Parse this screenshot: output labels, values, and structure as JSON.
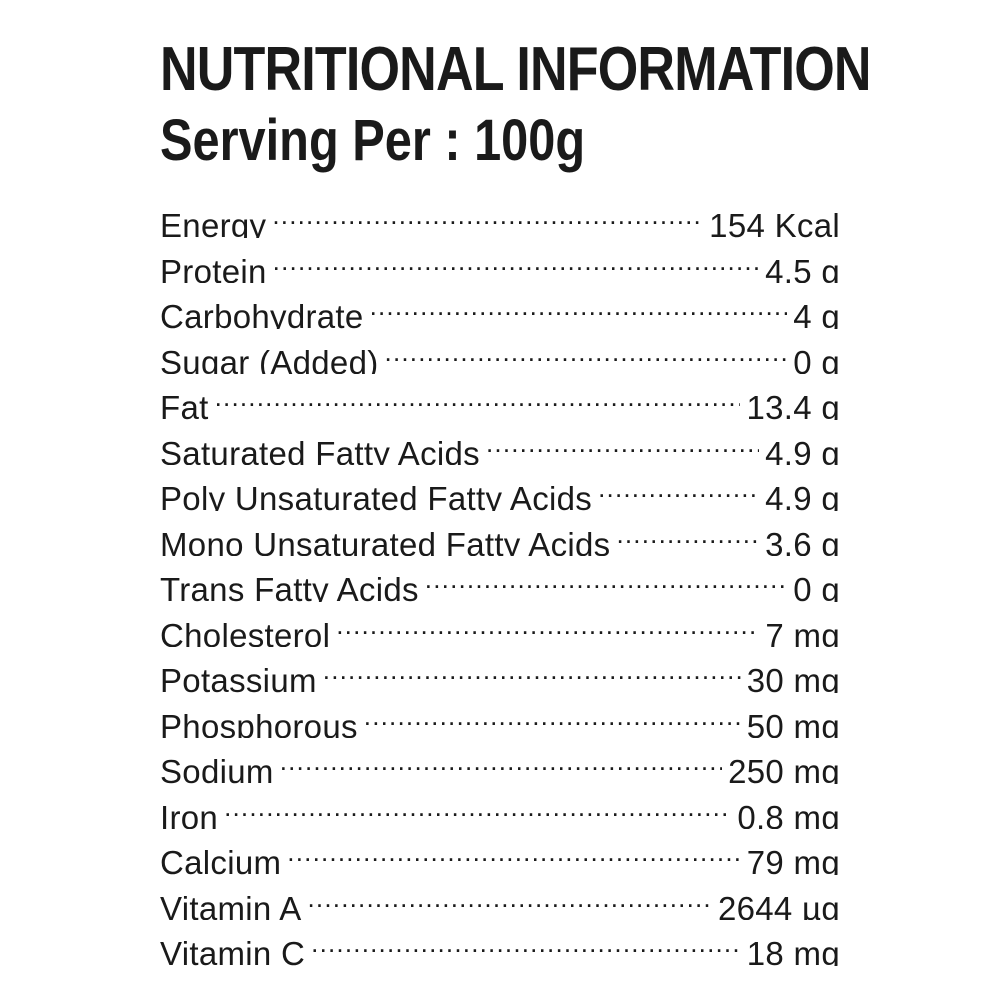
{
  "header": {
    "title": "NUTRITIONAL INFORMATION",
    "subtitle": "Serving Per : 100g"
  },
  "nutrients": [
    {
      "label": "Energy",
      "value": "154 Kcal"
    },
    {
      "label": "Protein",
      "value": "4.5 g"
    },
    {
      "label": "Carbohydrate",
      "value": "4  g"
    },
    {
      "label": "Sugar  (Added)",
      "value": "0  g"
    },
    {
      "label": "Fat",
      "value": "13.4 g"
    },
    {
      "label": "Saturated Fatty Acids",
      "value": "4.9 g"
    },
    {
      "label": "Poly Unsaturated Fatty Acids",
      "value": "4.9 g"
    },
    {
      "label": "Mono Unsaturated Fatty Acids",
      "value": "3.6 g"
    },
    {
      "label": "Trans Fatty Acids",
      "value": "0 g"
    },
    {
      "label": "Cholesterol",
      "value": "7  mg"
    },
    {
      "label": "Potassium",
      "value": "30 mg"
    },
    {
      "label": "Phosphorous",
      "value": "50 mg"
    },
    {
      "label": "Sodium",
      "value": "250 mg"
    },
    {
      "label": "Iron",
      "value": "0.8  mg"
    },
    {
      "label": "Calcium",
      "value": "79  mg"
    },
    {
      "label": "Vitamin A",
      "value": "2644 µg"
    },
    {
      "label": "Vitamin C",
      "value": "18 mg"
    }
  ]
}
